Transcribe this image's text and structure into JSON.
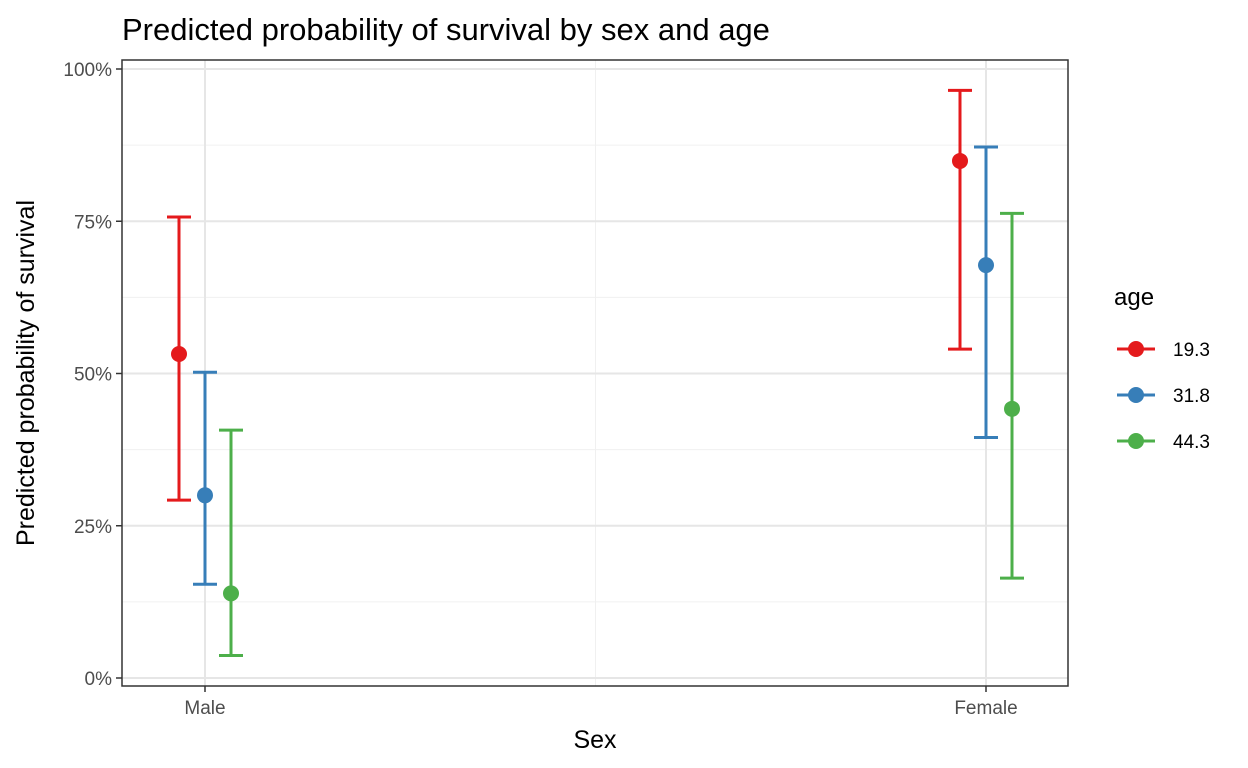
{
  "chart_data": {
    "type": "scatter",
    "title": "Predicted probability of survival by sex and age",
    "xlabel": "Sex",
    "ylabel": "Predicted probability of survival",
    "categories": [
      "Male",
      "Female"
    ],
    "ylim": [
      0,
      1
    ],
    "y_ticks": [
      0,
      0.25,
      0.5,
      0.75,
      1.0
    ],
    "y_tick_labels": [
      "0%",
      "25%",
      "50%",
      "75%",
      "100%"
    ],
    "grid": true,
    "legend": {
      "title": "age",
      "position": "right"
    },
    "series": [
      {
        "name": "19.3",
        "color": "#e41a1c",
        "estimate": [
          0.532,
          0.849
        ],
        "lower": [
          0.292,
          0.54
        ],
        "upper": [
          0.757,
          0.965
        ]
      },
      {
        "name": "31.8",
        "color": "#377eb8",
        "estimate": [
          0.3,
          0.678
        ],
        "lower": [
          0.154,
          0.395
        ],
        "upper": [
          0.502,
          0.872
        ]
      },
      {
        "name": "44.3",
        "color": "#4daf4a",
        "estimate": [
          0.139,
          0.442
        ],
        "lower": [
          0.037,
          0.164
        ],
        "upper": [
          0.407,
          0.763
        ]
      }
    ]
  }
}
